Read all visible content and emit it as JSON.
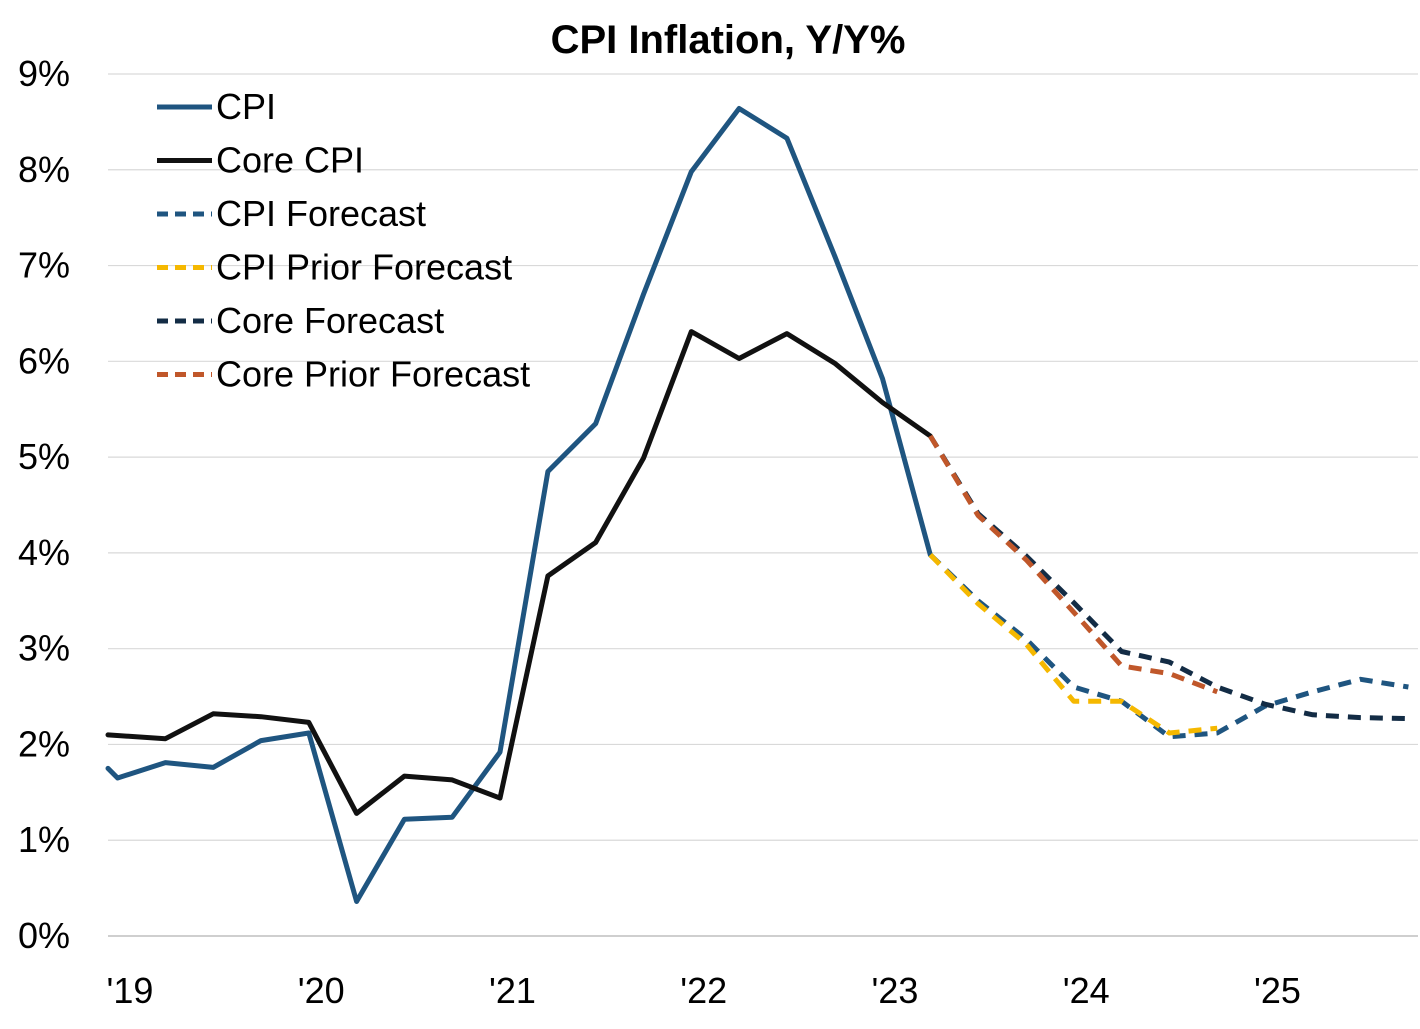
{
  "chart_data": {
    "type": "line",
    "title": "CPI Inflation, Y/Y%",
    "xlabel": "",
    "ylabel": "",
    "ylim": [
      0,
      9
    ],
    "yticks": [
      0,
      1,
      2,
      3,
      4,
      5,
      6,
      7,
      8,
      9
    ],
    "ytick_labels": [
      "0%",
      "1%",
      "2%",
      "3%",
      "4%",
      "5%",
      "6%",
      "7%",
      "8%",
      "9%"
    ],
    "xlim": [
      2019.0,
      2025.85
    ],
    "xticks": [
      2019,
      2020,
      2021,
      2022,
      2023,
      2024,
      2025
    ],
    "xtick_labels": [
      "'19",
      "'20",
      "'21",
      "'22",
      "'23",
      "'24",
      "'25"
    ],
    "grid": "horizontal",
    "legend_position": "top-left",
    "series": [
      {
        "name": "CPI",
        "color": "#1f5580",
        "style": "solid",
        "x": [
          2019.0,
          2019.05,
          2019.3,
          2019.55,
          2019.8,
          2020.05,
          2020.3,
          2020.55,
          2020.8,
          2021.05,
          2021.3,
          2021.55,
          2021.8,
          2022.05,
          2022.3,
          2022.55,
          2022.8,
          2023.05,
          2023.3
        ],
        "values": [
          1.75,
          1.65,
          1.81,
          1.76,
          2.04,
          2.12,
          0.36,
          1.22,
          1.24,
          1.92,
          4.85,
          5.35,
          6.7,
          7.98,
          8.64,
          8.33,
          7.1,
          5.82,
          3.98
        ]
      },
      {
        "name": "Core CPI",
        "color": "#111111",
        "style": "solid",
        "x": [
          2019.0,
          2019.3,
          2019.55,
          2019.8,
          2020.05,
          2020.3,
          2020.55,
          2020.8,
          2021.05,
          2021.3,
          2021.55,
          2021.8,
          2022.05,
          2022.3,
          2022.55,
          2022.8,
          2023.05,
          2023.3
        ],
        "values": [
          2.1,
          2.06,
          2.32,
          2.29,
          2.23,
          1.28,
          1.67,
          1.63,
          1.44,
          3.76,
          4.11,
          4.99,
          6.31,
          6.03,
          6.29,
          5.98,
          5.57,
          5.22
        ]
      },
      {
        "name": "CPI Forecast",
        "color": "#1f5580",
        "style": "dashed",
        "x": [
          2023.3,
          2023.55,
          2023.8,
          2024.05,
          2024.3,
          2024.55,
          2024.8,
          2025.05,
          2025.3,
          2025.55,
          2025.8
        ],
        "values": [
          3.98,
          3.5,
          3.1,
          2.6,
          2.45,
          2.08,
          2.12,
          2.4,
          2.55,
          2.68,
          2.6
        ]
      },
      {
        "name": "CPI Prior Forecast",
        "color": "#f5b800",
        "style": "dashed",
        "x": [
          2023.3,
          2023.55,
          2023.8,
          2024.05,
          2024.3,
          2024.55,
          2024.8
        ],
        "values": [
          3.98,
          3.47,
          3.05,
          2.45,
          2.45,
          2.12,
          2.17
        ]
      },
      {
        "name": "Core Forecast",
        "color": "#132c45",
        "style": "dashed",
        "x": [
          2023.3,
          2023.55,
          2023.8,
          2024.05,
          2024.3,
          2024.55,
          2024.8,
          2025.05,
          2025.3,
          2025.55,
          2025.8
        ],
        "values": [
          5.22,
          4.41,
          3.97,
          3.48,
          2.97,
          2.86,
          2.6,
          2.42,
          2.31,
          2.28,
          2.27
        ]
      },
      {
        "name": "Core Prior Forecast",
        "color": "#c0572a",
        "style": "dashed",
        "x": [
          2023.3,
          2023.55,
          2023.8,
          2024.05,
          2024.3,
          2024.55,
          2024.8
        ],
        "values": [
          5.22,
          4.39,
          3.93,
          3.38,
          2.82,
          2.74,
          2.55
        ]
      }
    ]
  }
}
